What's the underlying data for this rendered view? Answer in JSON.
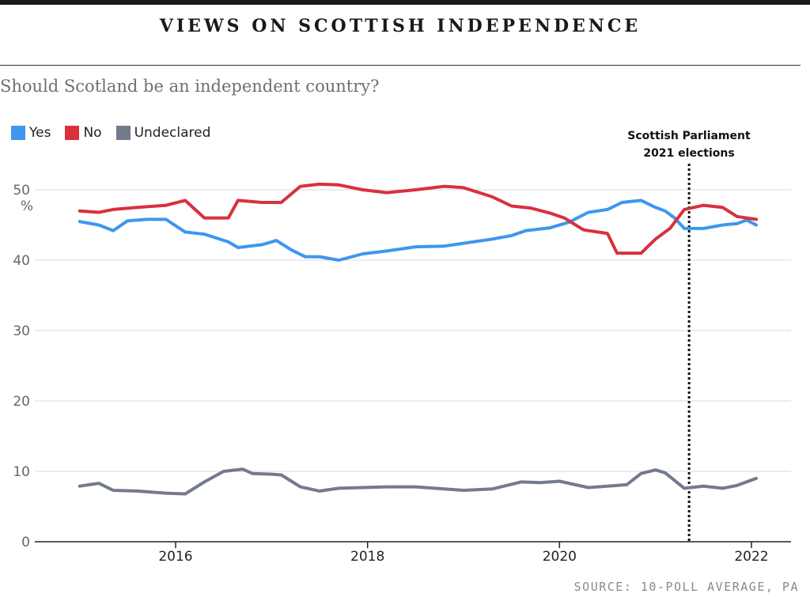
{
  "chart_data": {
    "type": "line",
    "title": "VIEWS ON SCOTTISH INDEPENDENCE",
    "subtitle": "Should Scotland be an independent country?",
    "ylabel": "%",
    "ylim": [
      0,
      55
    ],
    "xlim": [
      2014.8,
      2022.25
    ],
    "yticks": [
      0,
      10,
      20,
      30,
      40,
      50
    ],
    "xticks": [
      2016,
      2018,
      2020,
      2022
    ],
    "grid": true,
    "legend": "top-left",
    "annotation": {
      "x": 2021.35,
      "line1": "Scottish Parliament",
      "line2": "2021 elections"
    },
    "source": "SOURCE: 10-POLL AVERAGE, PA",
    "series": [
      {
        "name": "Yes",
        "color": "#3f96ee",
        "x": [
          2015.0,
          2015.2,
          2015.35,
          2015.5,
          2015.7,
          2015.9,
          2016.1,
          2016.3,
          2016.55,
          2016.65,
          2016.9,
          2017.05,
          2017.2,
          2017.35,
          2017.5,
          2017.7,
          2017.95,
          2018.2,
          2018.5,
          2018.8,
          2019.0,
          2019.3,
          2019.5,
          2019.65,
          2019.9,
          2020.1,
          2020.3,
          2020.5,
          2020.65,
          2020.85,
          2021.0,
          2021.1,
          2021.2,
          2021.3,
          2021.5,
          2021.7,
          2021.85,
          2021.95,
          2022.05
        ],
        "values": [
          45.5,
          45.0,
          44.2,
          45.6,
          45.8,
          45.8,
          44.0,
          43.7,
          42.6,
          41.8,
          42.2,
          42.8,
          41.5,
          40.5,
          40.5,
          40.0,
          40.9,
          41.3,
          41.9,
          42.0,
          42.4,
          43.0,
          43.5,
          44.2,
          44.6,
          45.4,
          46.8,
          47.2,
          48.2,
          48.5,
          47.5,
          47.0,
          46.0,
          44.5,
          44.5,
          45.0,
          45.2,
          45.7,
          45.0
        ]
      },
      {
        "name": "No",
        "color": "#d9303d",
        "x": [
          2015.0,
          2015.2,
          2015.35,
          2015.6,
          2015.9,
          2016.1,
          2016.3,
          2016.55,
          2016.65,
          2016.9,
          2017.1,
          2017.3,
          2017.5,
          2017.7,
          2017.95,
          2018.2,
          2018.5,
          2018.8,
          2019.0,
          2019.3,
          2019.5,
          2019.7,
          2019.9,
          2020.05,
          2020.25,
          2020.5,
          2020.6,
          2020.85,
          2021.0,
          2021.15,
          2021.3,
          2021.5,
          2021.7,
          2021.85,
          2022.05
        ],
        "values": [
          47.0,
          46.8,
          47.2,
          47.5,
          47.8,
          48.5,
          46.0,
          46.0,
          48.5,
          48.2,
          48.2,
          50.5,
          50.8,
          50.7,
          50.0,
          49.6,
          50.0,
          50.5,
          50.3,
          49.0,
          47.7,
          47.4,
          46.7,
          46.0,
          44.3,
          43.8,
          41.0,
          41.0,
          43.0,
          44.5,
          47.2,
          47.8,
          47.5,
          46.2,
          45.8
        ]
      },
      {
        "name": "Undeclared",
        "color": "#737a8c",
        "x": [
          2015.0,
          2015.2,
          2015.35,
          2015.6,
          2015.9,
          2016.1,
          2016.3,
          2016.5,
          2016.7,
          2016.8,
          2017.0,
          2017.1,
          2017.3,
          2017.5,
          2017.7,
          2017.95,
          2018.2,
          2018.5,
          2018.8,
          2019.0,
          2019.3,
          2019.6,
          2019.8,
          2020.0,
          2020.3,
          2020.5,
          2020.7,
          2020.85,
          2021.0,
          2021.1,
          2021.3,
          2021.5,
          2021.7,
          2021.85,
          2022.05
        ],
        "values": [
          7.9,
          8.3,
          7.3,
          7.2,
          6.9,
          6.8,
          8.5,
          10.0,
          10.3,
          9.7,
          9.6,
          9.5,
          7.8,
          7.2,
          7.6,
          7.7,
          7.8,
          7.8,
          7.5,
          7.3,
          7.5,
          8.5,
          8.4,
          8.6,
          7.7,
          7.9,
          8.1,
          9.7,
          10.2,
          9.8,
          7.6,
          7.9,
          7.6,
          8.0,
          9.0
        ]
      }
    ]
  }
}
